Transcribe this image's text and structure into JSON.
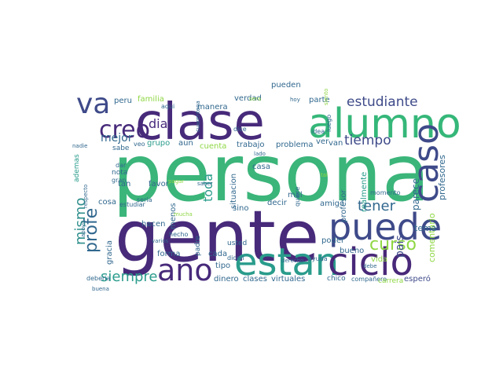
{
  "wordcloud": {
    "words": [
      {
        "text": "persona",
        "color": "#3bb57a"
      },
      {
        "text": "gente",
        "color": "#472a7a"
      },
      {
        "text": "clase",
        "color": "#472a7a"
      },
      {
        "text": "alumno",
        "color": "#35b779"
      },
      {
        "text": "estan",
        "color": "#2a9c8c"
      },
      {
        "text": "ciclo",
        "color": "#482878"
      },
      {
        "text": "puede",
        "color": "#3e4a89"
      },
      {
        "text": "año",
        "color": "#472a7a"
      },
      {
        "text": "caso",
        "color": "#3e4a89"
      },
      {
        "text": "va",
        "color": "#3e4a89"
      },
      {
        "text": "creo",
        "color": "#472a7a"
      },
      {
        "text": "curso",
        "color": "#8fd744"
      },
      {
        "text": "profe",
        "color": "#31688e"
      },
      {
        "text": "mismo",
        "color": "#2f8f8c"
      },
      {
        "text": "siempre",
        "color": "#2a9c8c"
      },
      {
        "text": "estudiante",
        "color": "#3e4a89"
      },
      {
        "text": "tiempo",
        "color": "#3e4a89"
      },
      {
        "text": "tener",
        "color": "#31688e"
      },
      {
        "text": "mejor",
        "color": "#31688e"
      },
      {
        "text": "dia",
        "color": "#472a7a"
      },
      {
        "text": "toda",
        "color": "#2a9c8c"
      },
      {
        "text": "pais",
        "color": "#3e4a89"
      },
      {
        "text": "parece",
        "color": "#31688e"
      },
      {
        "text": "profesores",
        "color": "#31688e"
      },
      {
        "text": "comentario",
        "color": "#8fd744"
      },
      {
        "text": "tema",
        "color": "#31688e"
      },
      {
        "text": "esperó",
        "color": "#3e4a89"
      },
      {
        "text": "pueden",
        "color": "#31688e"
      },
      {
        "text": "verdad",
        "color": "#31688e"
      },
      {
        "text": "parte",
        "color": "#31688e"
      },
      {
        "text": "familia",
        "color": "#8fd744"
      },
      {
        "text": "manera",
        "color": "#31688e"
      },
      {
        "text": "peru",
        "color": "#31688e"
      },
      {
        "text": "cosa",
        "color": "#31688e"
      },
      {
        "text": "grupo",
        "color": "#2a9c8c"
      },
      {
        "text": "aun",
        "color": "#31688e"
      },
      {
        "text": "cuenta",
        "color": "#8fd744"
      },
      {
        "text": "trabajo",
        "color": "#31688e"
      },
      {
        "text": "problema",
        "color": "#31688e"
      },
      {
        "text": "ver",
        "color": "#31688e"
      },
      {
        "text": "van",
        "color": "#31688e"
      },
      {
        "text": "casa",
        "color": "#31688e"
      },
      {
        "text": "mal",
        "color": "#31688e"
      },
      {
        "text": "amigo",
        "color": "#31688e"
      },
      {
        "text": "profesor",
        "color": "#31688e"
      },
      {
        "text": "realmente",
        "color": "#2a9c8c"
      },
      {
        "text": "vida",
        "color": "#8fd744"
      },
      {
        "text": "bueno",
        "color": "#31688e"
      },
      {
        "text": "poder",
        "color": "#31688e"
      },
      {
        "text": "hacen",
        "color": "#31688e"
      },
      {
        "text": "sino",
        "color": "#31688e"
      },
      {
        "text": "decir",
        "color": "#31688e"
      },
      {
        "text": "favor",
        "color": "#31688e"
      },
      {
        "text": "menos",
        "color": "#31688e"
      },
      {
        "text": "situacion",
        "color": "#31688e"
      },
      {
        "text": "forma",
        "color": "#31688e"
      },
      {
        "text": "cada",
        "color": "#31688e"
      },
      {
        "text": "tipo",
        "color": "#31688e"
      },
      {
        "text": "dinero",
        "color": "#31688e"
      },
      {
        "text": "clases",
        "color": "#31688e"
      },
      {
        "text": "virtuales",
        "color": "#31688e"
      },
      {
        "text": "chico",
        "color": "#31688e"
      },
      {
        "text": "compañero",
        "color": "#31688e"
      },
      {
        "text": "carrera",
        "color": "#8fd744"
      },
      {
        "text": "ademas",
        "color": "#2a9c8c"
      },
      {
        "text": "tan",
        "color": "#31688e"
      },
      {
        "text": "gracia",
        "color": "#31688e"
      },
      {
        "text": "sabe",
        "color": "#31688e"
      },
      {
        "text": "nota",
        "color": "#31688e"
      },
      {
        "text": "gran",
        "color": "#31688e"
      },
      {
        "text": "dar",
        "color": "#31688e"
      },
      {
        "text": "usted",
        "color": "#31688e"
      },
      {
        "text": "padre",
        "color": "#31688e"
      },
      {
        "text": "hecho",
        "color": "#31688e"
      },
      {
        "text": "debería",
        "color": "#31688e"
      },
      {
        "text": "ayuda",
        "color": "#31688e"
      },
      {
        "text": "momento",
        "color": "#31688e"
      },
      {
        "text": "quiere",
        "color": "#31688e"
      },
      {
        "text": "dice",
        "color": "#31688e"
      },
      {
        "text": "dicen",
        "color": "#31688e"
      },
      {
        "text": "idea",
        "color": "#31688e"
      },
      {
        "text": "luego",
        "color": "#31688e"
      },
      {
        "text": "seria",
        "color": "#31688e"
      },
      {
        "text": "aqui",
        "color": "#31688e"
      },
      {
        "text": "veo",
        "color": "#31688e"
      },
      {
        "text": "buena",
        "color": "#31688e"
      },
      {
        "text": "estudiar",
        "color": "#31688e"
      },
      {
        "text": "varios",
        "color": "#31688e"
      },
      {
        "text": "mucha",
        "color": "#8fd744"
      },
      {
        "text": "cuarentena",
        "color": "#31688e"
      },
      {
        "text": "sera",
        "color": "#8fd744"
      },
      {
        "text": "hoy",
        "color": "#31688e"
      },
      {
        "text": "siento",
        "color": "#8fd744"
      },
      {
        "text": "derecho",
        "color": "#31688e"
      },
      {
        "text": "lado",
        "color": "#31688e"
      },
      {
        "text": "nadie",
        "color": "#31688e"
      },
      {
        "text": "tal",
        "color": "#8fd744"
      },
      {
        "text": "debe",
        "color": "#31688e"
      },
      {
        "text": "respecto",
        "color": "#31688e"
      },
      {
        "text": "saber",
        "color": "#31688e"
      },
      {
        "text": "pagar",
        "color": "#8fd744"
      },
      {
        "text": "apoyo",
        "color": "#31688e"
      }
    ]
  }
}
